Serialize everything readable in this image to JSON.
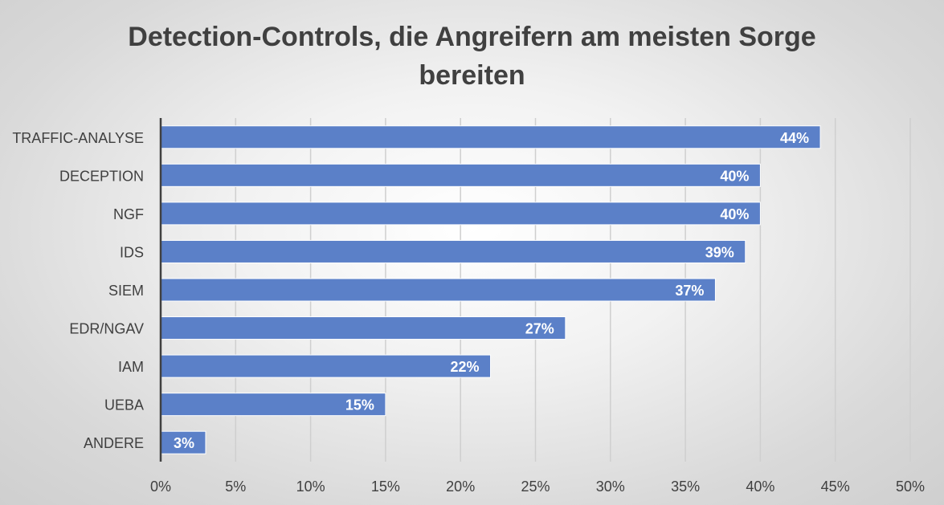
{
  "chart_data": {
    "type": "bar",
    "orientation": "horizontal",
    "title_line1": "Detection-Controls, die Angreifern am meisten Sorge",
    "title_line2": "bereiten",
    "categories": [
      "TRAFFIC-ANALYSE",
      "DECEPTION",
      "NGF",
      "IDS",
      "SIEM",
      "EDR/NGAV",
      "IAM",
      "UEBA",
      "ANDERE"
    ],
    "values": [
      44,
      40,
      40,
      39,
      37,
      27,
      22,
      15,
      3
    ],
    "data_labels": [
      "44%",
      "40%",
      "40%",
      "39%",
      "37%",
      "27%",
      "22%",
      "15%",
      "3%"
    ],
    "xlim": [
      0,
      50
    ],
    "x_ticks": [
      0,
      5,
      10,
      15,
      20,
      25,
      30,
      35,
      40,
      45,
      50
    ],
    "x_tick_labels": [
      "0%",
      "5%",
      "10%",
      "15%",
      "20%",
      "25%",
      "30%",
      "35%",
      "40%",
      "45%",
      "50%"
    ],
    "grid": true,
    "legend": "none",
    "colors": {
      "bar": "#5b80c8",
      "bar_border": "#ffffff",
      "grid": "#cfcfcf",
      "axis": "#404040",
      "text": "#404040",
      "label": "#ffffff"
    }
  }
}
